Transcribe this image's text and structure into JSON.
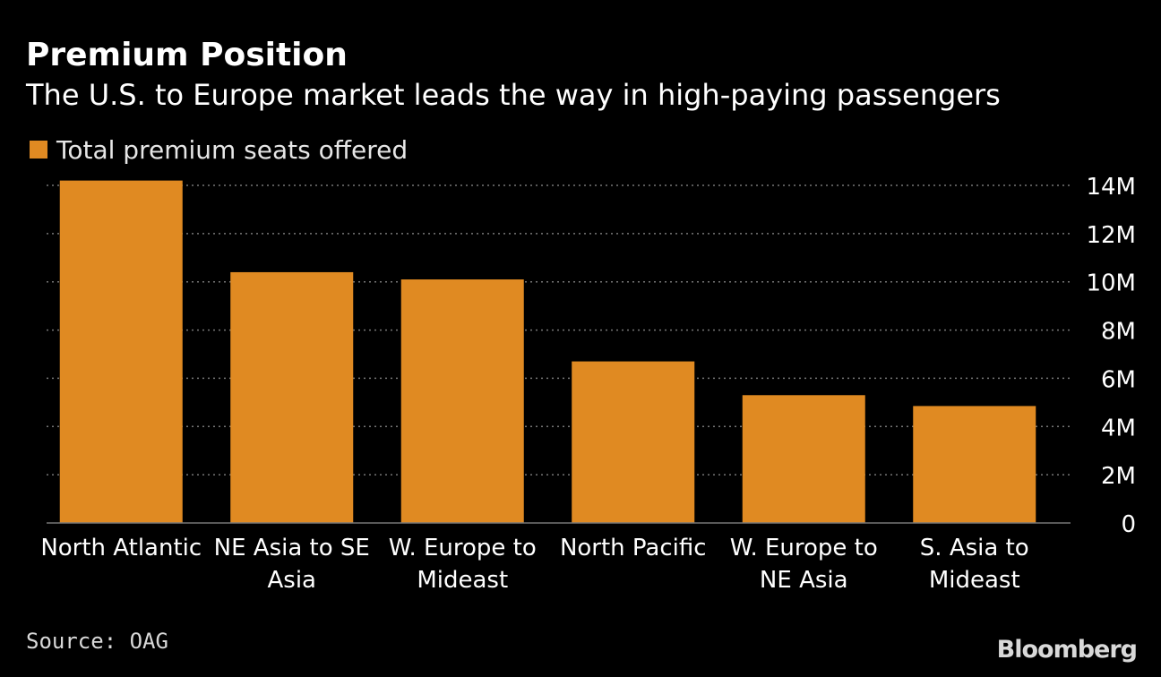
{
  "colors": {
    "background": "#000000",
    "bar": "#E08A22",
    "gridline": "#777777",
    "text": "#FFFFFF",
    "muted_text": "#D9D9D9"
  },
  "chart_data": {
    "type": "bar",
    "title": "Premium Position",
    "subtitle": "The U.S. to Europe market leads the way in high-paying passengers",
    "series": [
      {
        "name": "Total premium seats offered",
        "values": [
          14.2,
          10.4,
          10.1,
          6.7,
          5.3,
          4.85
        ]
      }
    ],
    "categories": [
      [
        "North Atlantic"
      ],
      [
        "NE Asia to SE",
        "Asia"
      ],
      [
        "W. Europe to",
        "Mideast"
      ],
      [
        "North Pacific"
      ],
      [
        "W. Europe to",
        "NE Asia"
      ],
      [
        "S. Asia to",
        "Mideast"
      ]
    ],
    "unit": "M",
    "ylim": [
      0,
      14
    ],
    "yticks": [
      {
        "value": 0,
        "label": "0"
      },
      {
        "value": 2,
        "label": "2M"
      },
      {
        "value": 4,
        "label": "4M"
      },
      {
        "value": 6,
        "label": "6M"
      },
      {
        "value": 8,
        "label": "8M"
      },
      {
        "value": 10,
        "label": "10M"
      },
      {
        "value": 12,
        "label": "12M"
      },
      {
        "value": 14,
        "label": "14M"
      }
    ],
    "y_axis_side": "right",
    "grid": "dotted horizontal",
    "legend_position": "top-left",
    "xlabel": "",
    "ylabel": ""
  },
  "footer": {
    "source": "Source: OAG",
    "brand": "Bloomberg"
  }
}
